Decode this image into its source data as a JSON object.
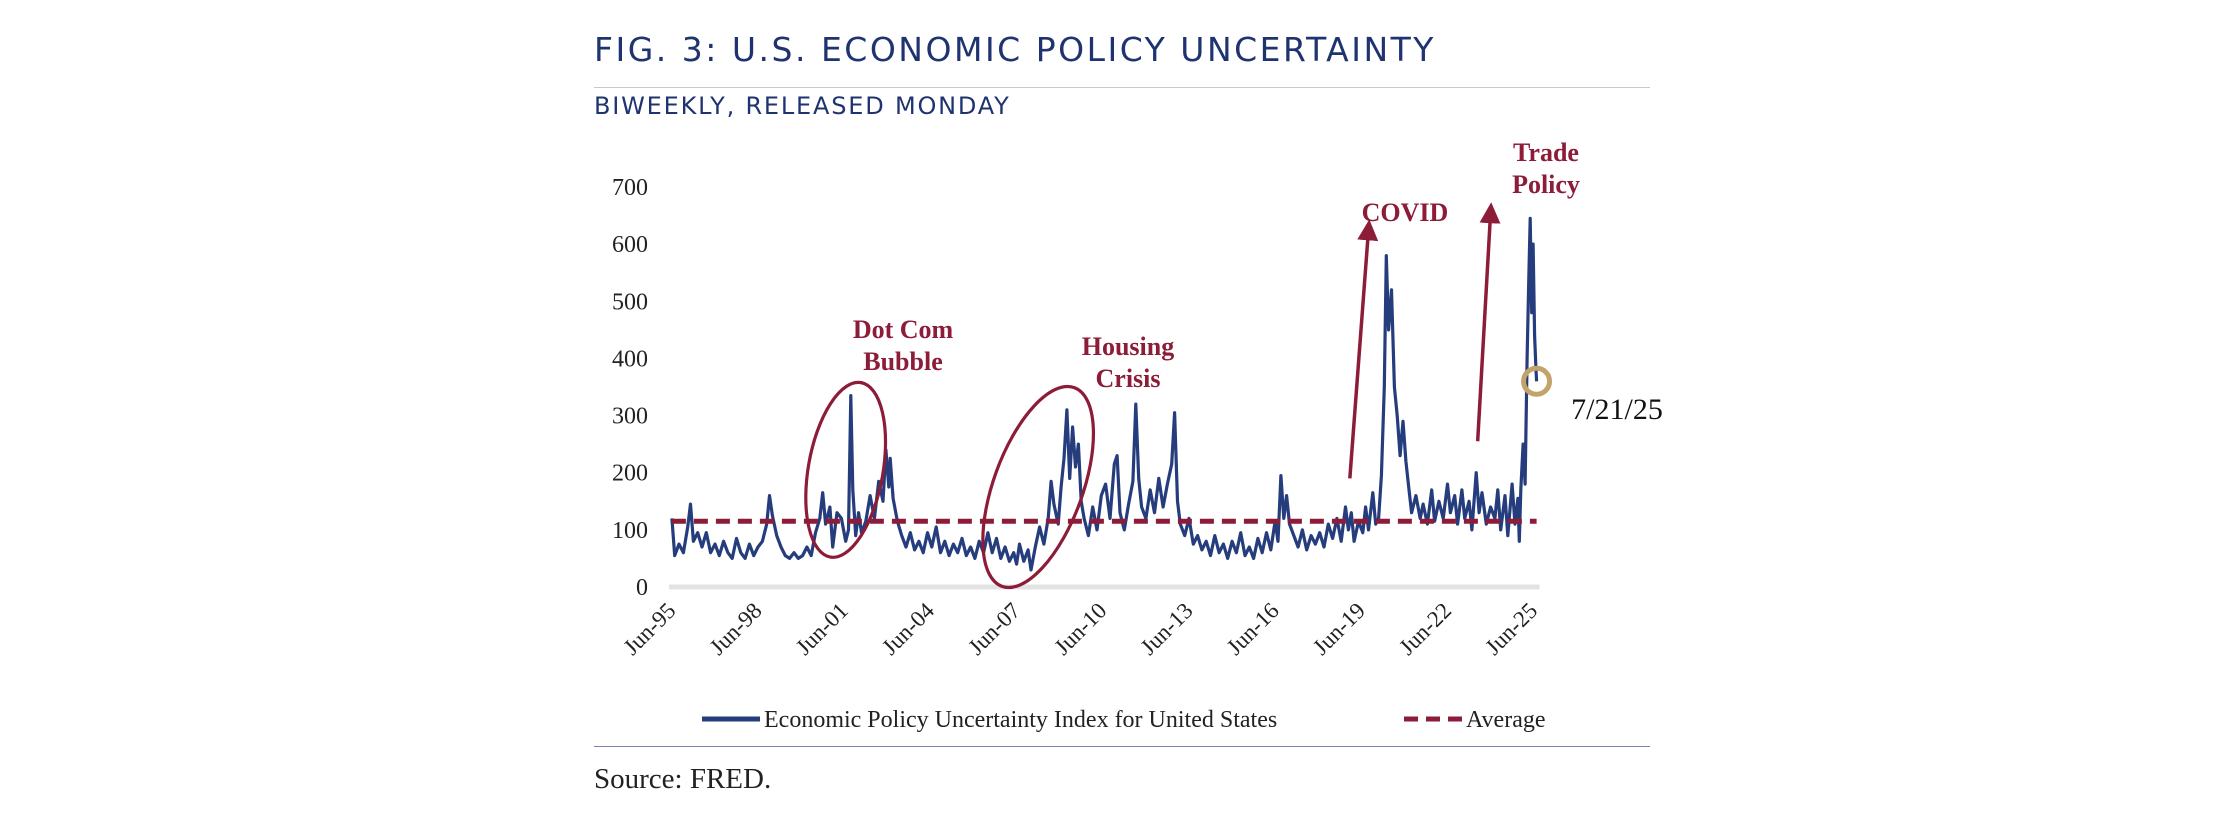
{
  "header": {
    "title": "FIG. 3: U.S. ECONOMIC POLICY UNCERTAINTY",
    "subtitle": "BIWEEKLY, RELEASED MONDAY"
  },
  "footer": {
    "source": "Source: FRED."
  },
  "colors": {
    "series": "#263d7d",
    "average": "#8c1c38",
    "annotation": "#8c1c38",
    "marker": "#c4a36a",
    "title": "#1f3370"
  },
  "chart_data": {
    "type": "line",
    "title": "FIG. 3: U.S. ECONOMIC POLICY UNCERTAINTY",
    "subtitle": "BIWEEKLY, RELEASED MONDAY",
    "xlabel": "",
    "ylabel": "",
    "ylim": [
      0,
      700
    ],
    "yticks": [
      0,
      100,
      200,
      300,
      400,
      500,
      600,
      700
    ],
    "xlim": [
      1995.42,
      2025.6
    ],
    "xticks": [
      {
        "label": "Jun-95",
        "t": 1995.42
      },
      {
        "label": "Jun-98",
        "t": 1998.42
      },
      {
        "label": "Jun-01",
        "t": 2001.42
      },
      {
        "label": "Jun-04",
        "t": 2004.42
      },
      {
        "label": "Jun-07",
        "t": 2007.42
      },
      {
        "label": "Jun-10",
        "t": 2010.42
      },
      {
        "label": "Jun-13",
        "t": 2013.42
      },
      {
        "label": "Jun-16",
        "t": 2016.42
      },
      {
        "label": "Jun-19",
        "t": 2019.42
      },
      {
        "label": "Jun-22",
        "t": 2022.42
      },
      {
        "label": "Jun-25",
        "t": 2025.42
      }
    ],
    "grid": false,
    "legend_position": "bottom",
    "series": [
      {
        "name": "Economic Policy Uncertainty Index for United States",
        "style": "solid",
        "points": [
          [
            1995.45,
            120
          ],
          [
            1995.55,
            55
          ],
          [
            1995.7,
            75
          ],
          [
            1995.85,
            60
          ],
          [
            1996.0,
            105
          ],
          [
            1996.1,
            145
          ],
          [
            1996.2,
            80
          ],
          [
            1996.35,
            95
          ],
          [
            1996.5,
            70
          ],
          [
            1996.65,
            95
          ],
          [
            1996.8,
            60
          ],
          [
            1996.95,
            75
          ],
          [
            1997.1,
            55
          ],
          [
            1997.25,
            80
          ],
          [
            1997.4,
            60
          ],
          [
            1997.55,
            50
          ],
          [
            1997.7,
            85
          ],
          [
            1997.85,
            60
          ],
          [
            1998.0,
            50
          ],
          [
            1998.15,
            75
          ],
          [
            1998.3,
            55
          ],
          [
            1998.45,
            70
          ],
          [
            1998.6,
            80
          ],
          [
            1998.75,
            110
          ],
          [
            1998.85,
            160
          ],
          [
            1998.95,
            125
          ],
          [
            1999.1,
            90
          ],
          [
            1999.25,
            70
          ],
          [
            1999.4,
            55
          ],
          [
            1999.55,
            50
          ],
          [
            1999.7,
            60
          ],
          [
            1999.85,
            50
          ],
          [
            2000.0,
            55
          ],
          [
            2000.15,
            70
          ],
          [
            2000.3,
            55
          ],
          [
            2000.45,
            95
          ],
          [
            2000.6,
            120
          ],
          [
            2000.7,
            165
          ],
          [
            2000.8,
            110
          ],
          [
            2000.95,
            140
          ],
          [
            2001.05,
            70
          ],
          [
            2001.2,
            130
          ],
          [
            2001.35,
            120
          ],
          [
            2001.5,
            80
          ],
          [
            2001.6,
            100
          ],
          [
            2001.68,
            335
          ],
          [
            2001.75,
            170
          ],
          [
            2001.85,
            90
          ],
          [
            2001.95,
            130
          ],
          [
            2002.05,
            95
          ],
          [
            2002.2,
            115
          ],
          [
            2002.35,
            160
          ],
          [
            2002.5,
            120
          ],
          [
            2002.65,
            185
          ],
          [
            2002.8,
            150
          ],
          [
            2002.9,
            240
          ],
          [
            2003.0,
            175
          ],
          [
            2003.05,
            225
          ],
          [
            2003.15,
            155
          ],
          [
            2003.3,
            115
          ],
          [
            2003.45,
            90
          ],
          [
            2003.6,
            70
          ],
          [
            2003.75,
            95
          ],
          [
            2003.9,
            65
          ],
          [
            2004.05,
            80
          ],
          [
            2004.2,
            60
          ],
          [
            2004.35,
            95
          ],
          [
            2004.5,
            70
          ],
          [
            2004.65,
            105
          ],
          [
            2004.8,
            60
          ],
          [
            2004.95,
            80
          ],
          [
            2005.1,
            55
          ],
          [
            2005.25,
            75
          ],
          [
            2005.4,
            60
          ],
          [
            2005.55,
            85
          ],
          [
            2005.7,
            55
          ],
          [
            2005.85,
            70
          ],
          [
            2006.0,
            50
          ],
          [
            2006.15,
            80
          ],
          [
            2006.3,
            60
          ],
          [
            2006.45,
            95
          ],
          [
            2006.6,
            60
          ],
          [
            2006.75,
            85
          ],
          [
            2006.9,
            50
          ],
          [
            2007.05,
            70
          ],
          [
            2007.2,
            45
          ],
          [
            2007.35,
            60
          ],
          [
            2007.45,
            40
          ],
          [
            2007.55,
            75
          ],
          [
            2007.7,
            45
          ],
          [
            2007.85,
            65
          ],
          [
            2007.95,
            30
          ],
          [
            2008.1,
            70
          ],
          [
            2008.25,
            105
          ],
          [
            2008.4,
            75
          ],
          [
            2008.55,
            120
          ],
          [
            2008.65,
            185
          ],
          [
            2008.75,
            145
          ],
          [
            2008.9,
            110
          ],
          [
            2009.0,
            175
          ],
          [
            2009.1,
            225
          ],
          [
            2009.2,
            310
          ],
          [
            2009.3,
            190
          ],
          [
            2009.4,
            280
          ],
          [
            2009.5,
            210
          ],
          [
            2009.6,
            250
          ],
          [
            2009.7,
            150
          ],
          [
            2009.8,
            120
          ],
          [
            2009.95,
            90
          ],
          [
            2010.1,
            140
          ],
          [
            2010.25,
            100
          ],
          [
            2010.4,
            160
          ],
          [
            2010.55,
            180
          ],
          [
            2010.7,
            120
          ],
          [
            2010.85,
            215
          ],
          [
            2010.95,
            230
          ],
          [
            2011.05,
            130
          ],
          [
            2011.2,
            100
          ],
          [
            2011.35,
            145
          ],
          [
            2011.5,
            185
          ],
          [
            2011.6,
            320
          ],
          [
            2011.7,
            190
          ],
          [
            2011.8,
            140
          ],
          [
            2011.95,
            120
          ],
          [
            2012.1,
            170
          ],
          [
            2012.25,
            130
          ],
          [
            2012.4,
            190
          ],
          [
            2012.55,
            140
          ],
          [
            2012.7,
            180
          ],
          [
            2012.85,
            215
          ],
          [
            2012.95,
            305
          ],
          [
            2013.05,
            150
          ],
          [
            2013.15,
            110
          ],
          [
            2013.3,
            90
          ],
          [
            2013.45,
            120
          ],
          [
            2013.6,
            75
          ],
          [
            2013.75,
            90
          ],
          [
            2013.9,
            65
          ],
          [
            2014.05,
            80
          ],
          [
            2014.2,
            55
          ],
          [
            2014.35,
            90
          ],
          [
            2014.5,
            60
          ],
          [
            2014.65,
            75
          ],
          [
            2014.8,
            50
          ],
          [
            2014.95,
            80
          ],
          [
            2015.1,
            60
          ],
          [
            2015.25,
            95
          ],
          [
            2015.4,
            55
          ],
          [
            2015.55,
            70
          ],
          [
            2015.7,
            50
          ],
          [
            2015.85,
            85
          ],
          [
            2016.0,
            60
          ],
          [
            2016.15,
            95
          ],
          [
            2016.3,
            65
          ],
          [
            2016.45,
            115
          ],
          [
            2016.55,
            80
          ],
          [
            2016.65,
            195
          ],
          [
            2016.75,
            120
          ],
          [
            2016.85,
            160
          ],
          [
            2016.95,
            110
          ],
          [
            2017.1,
            90
          ],
          [
            2017.25,
            70
          ],
          [
            2017.4,
            100
          ],
          [
            2017.55,
            65
          ],
          [
            2017.7,
            90
          ],
          [
            2017.85,
            75
          ],
          [
            2018.0,
            95
          ],
          [
            2018.15,
            70
          ],
          [
            2018.3,
            110
          ],
          [
            2018.45,
            85
          ],
          [
            2018.6,
            120
          ],
          [
            2018.75,
            80
          ],
          [
            2018.9,
            140
          ],
          [
            2019.0,
            100
          ],
          [
            2019.1,
            130
          ],
          [
            2019.2,
            80
          ],
          [
            2019.35,
            115
          ],
          [
            2019.5,
            95
          ],
          [
            2019.6,
            140
          ],
          [
            2019.7,
            100
          ],
          [
            2019.85,
            165
          ],
          [
            2019.95,
            110
          ],
          [
            2020.05,
            120
          ],
          [
            2020.15,
            195
          ],
          [
            2020.25,
            350
          ],
          [
            2020.32,
            580
          ],
          [
            2020.4,
            450
          ],
          [
            2020.5,
            520
          ],
          [
            2020.6,
            350
          ],
          [
            2020.7,
            300
          ],
          [
            2020.8,
            230
          ],
          [
            2020.9,
            290
          ],
          [
            2021.0,
            220
          ],
          [
            2021.1,
            175
          ],
          [
            2021.2,
            130
          ],
          [
            2021.35,
            160
          ],
          [
            2021.5,
            120
          ],
          [
            2021.6,
            145
          ],
          [
            2021.75,
            110
          ],
          [
            2021.9,
            170
          ],
          [
            2022.0,
            115
          ],
          [
            2022.15,
            150
          ],
          [
            2022.3,
            120
          ],
          [
            2022.45,
            180
          ],
          [
            2022.55,
            130
          ],
          [
            2022.7,
            160
          ],
          [
            2022.8,
            110
          ],
          [
            2022.95,
            170
          ],
          [
            2023.05,
            120
          ],
          [
            2023.2,
            150
          ],
          [
            2023.3,
            100
          ],
          [
            2023.45,
            200
          ],
          [
            2023.55,
            130
          ],
          [
            2023.65,
            165
          ],
          [
            2023.8,
            110
          ],
          [
            2023.95,
            140
          ],
          [
            2024.1,
            120
          ],
          [
            2024.2,
            170
          ],
          [
            2024.3,
            100
          ],
          [
            2024.45,
            160
          ],
          [
            2024.55,
            90
          ],
          [
            2024.7,
            180
          ],
          [
            2024.8,
            110
          ],
          [
            2024.9,
            155
          ],
          [
            2024.95,
            80
          ],
          [
            2025.0,
            170
          ],
          [
            2025.08,
            250
          ],
          [
            2025.15,
            180
          ],
          [
            2025.22,
            400
          ],
          [
            2025.28,
            540
          ],
          [
            2025.33,
            645
          ],
          [
            2025.38,
            480
          ],
          [
            2025.43,
            600
          ],
          [
            2025.48,
            440
          ],
          [
            2025.53,
            380
          ],
          [
            2025.55,
            360
          ]
        ]
      },
      {
        "name": "Average",
        "style": "dashed",
        "points": [
          [
            1995.45,
            115
          ],
          [
            2025.55,
            115
          ]
        ]
      }
    ],
    "annotations": [
      {
        "text_lines": [
          "Dot Com",
          "Bubble"
        ],
        "shape": "ellipse",
        "t": 2001.5,
        "v": 205,
        "rt": 1.3,
        "rv": 155,
        "rotate": 10
      },
      {
        "text_lines": [
          "Housing",
          "Crisis"
        ],
        "shape": "ellipse",
        "t": 2008.2,
        "v": 175,
        "rt": 1.55,
        "rv": 185,
        "rotate": 20
      },
      {
        "text_lines": [
          "COVID"
        ],
        "shape": "arrow",
        "from": [
          2019.05,
          190
        ],
        "to": [
          2019.7,
          625
        ]
      },
      {
        "text_lines": [
          "Trade",
          "Policy"
        ],
        "shape": "arrow",
        "from": [
          2023.5,
          255
        ],
        "to": [
          2023.95,
          655
        ]
      },
      {
        "text_lines": [
          "7/21/25"
        ],
        "shape": "circle-marker",
        "t": 2025.55,
        "v": 360
      }
    ]
  }
}
